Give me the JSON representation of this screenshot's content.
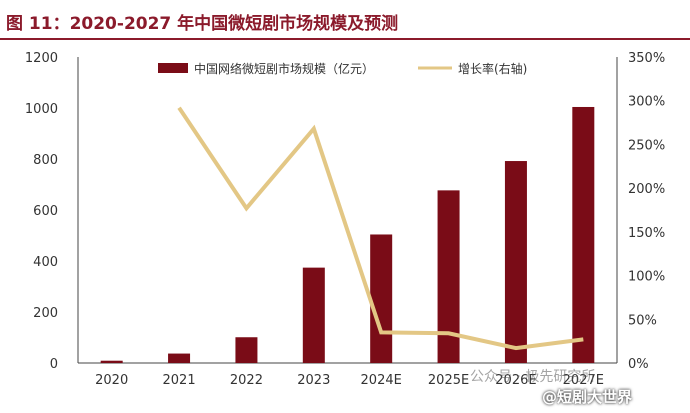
{
  "title": "图 11：2020-2027 年中国微短剧市场规模及预测",
  "watermarks": {
    "line1": "公众号 · 极先研究所",
    "line2": "@短剧大世界"
  },
  "colors": {
    "bar": "#7a0c17",
    "line": "#e3c785",
    "title": "#8b1a2b",
    "axis_text": "#333333"
  },
  "chart_data": {
    "type": "bar",
    "categories": [
      "2020",
      "2021",
      "2022",
      "2023",
      "2024E",
      "2025E",
      "2026E",
      "2027E"
    ],
    "series": [
      {
        "name": "中国网络微短剧市场规模（亿元）",
        "type": "bar",
        "axis": "left",
        "values": [
          9,
          37,
          101,
          374,
          504,
          677,
          792,
          1004
        ]
      },
      {
        "name": "增长率(右轴)",
        "type": "line",
        "axis": "right",
        "values": [
          null,
          2.92,
          1.77,
          2.68,
          0.35,
          0.34,
          0.17,
          0.27
        ]
      }
    ],
    "y_left": {
      "min": 0,
      "max": 1200,
      "ticks": [
        "0",
        "200",
        "400",
        "600",
        "800",
        "1000",
        "1200"
      ]
    },
    "y_right": {
      "min": 0,
      "max": 3.5,
      "ticks": [
        "0%",
        "50%",
        "100%",
        "150%",
        "200%",
        "250%",
        "300%",
        "350%"
      ]
    },
    "legend_position": "top-center",
    "grid": false
  }
}
